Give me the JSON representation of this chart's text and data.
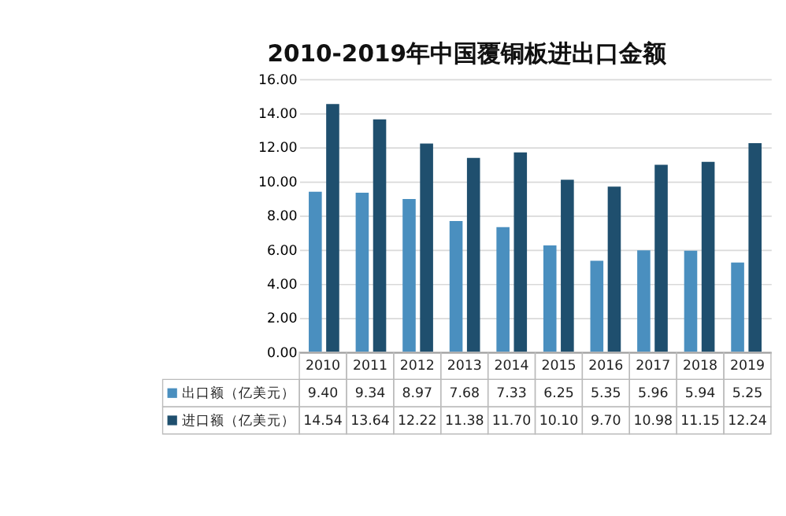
{
  "chart_data": {
    "type": "bar",
    "title": "2010-2019年中国覆铜板进出口金额",
    "categories": [
      "2010",
      "2011",
      "2012",
      "2013",
      "2014",
      "2015",
      "2016",
      "2017",
      "2018",
      "2019"
    ],
    "series": [
      {
        "name": "出口额（亿美元）",
        "color": "#4a8fbf",
        "values": [
          9.4,
          9.34,
          8.97,
          7.68,
          7.33,
          6.25,
          5.35,
          5.96,
          5.94,
          5.25
        ],
        "value_labels": [
          "9.40",
          "9.34",
          "8.97",
          "7.68",
          "7.33",
          "6.25",
          "5.35",
          "5.96",
          "5.94",
          "5.25"
        ]
      },
      {
        "name": "进口额（亿美元）",
        "color": "#1f4f6e",
        "values": [
          14.54,
          13.64,
          12.22,
          11.38,
          11.7,
          10.1,
          9.7,
          10.98,
          11.15,
          12.24
        ],
        "value_labels": [
          "14.54",
          "13.64",
          "12.22",
          "11.38",
          "11.70",
          "10.10",
          "9.70",
          "10.98",
          "11.15",
          "12.24"
        ]
      }
    ],
    "ylim": [
      0,
      16
    ],
    "yticks": [
      {
        "value": 0,
        "label": "0.00"
      },
      {
        "value": 2,
        "label": "2.00"
      },
      {
        "value": 4,
        "label": "4.00"
      },
      {
        "value": 6,
        "label": "6.00"
      },
      {
        "value": 8,
        "label": "8.00"
      },
      {
        "value": 10,
        "label": "10.00"
      },
      {
        "value": 12,
        "label": "12.00"
      },
      {
        "value": 14,
        "label": "14.00"
      },
      {
        "value": 16,
        "label": "16.00"
      }
    ],
    "grid": "y",
    "legend": "bottom left"
  }
}
